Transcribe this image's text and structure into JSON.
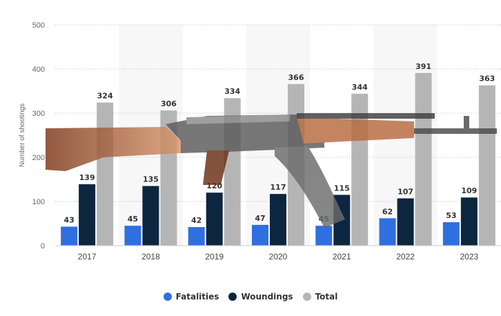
{
  "chart_data": {
    "type": "bar",
    "title": "",
    "xlabel": "",
    "ylabel": "Number of shootings",
    "ylim": [
      0,
      500
    ],
    "yticks": [
      0,
      100,
      200,
      300,
      400,
      500
    ],
    "grid": true,
    "legend_position": "bottom-center",
    "categories": [
      "2017",
      "2018",
      "2019",
      "2020",
      "2021",
      "2022",
      "2023"
    ],
    "series": [
      {
        "name": "Fatalities",
        "color": "#2f6fe0",
        "values": [
          43,
          45,
          42,
          47,
          45,
          62,
          53
        ]
      },
      {
        "name": "Woundings",
        "color": "#0d2640",
        "values": [
          139,
          135,
          120,
          117,
          115,
          107,
          109
        ]
      },
      {
        "name": "Total",
        "color": "#b5b5b5",
        "values": [
          324,
          306,
          334,
          366,
          344,
          391,
          363
        ]
      }
    ]
  }
}
